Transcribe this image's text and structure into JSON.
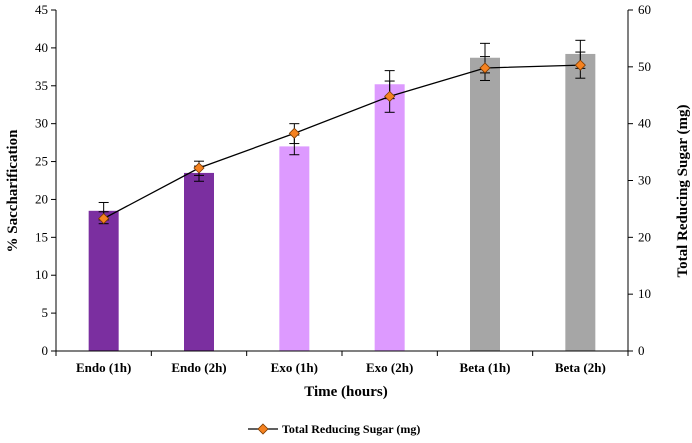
{
  "chart_data": {
    "type": "bar",
    "categories": [
      "Endo (1h)",
      "Endo (2h)",
      "Exo (1h)",
      "Exo (2h)",
      "Beta  (1h)",
      "Beta (2h)"
    ],
    "series": [
      {
        "name": "% Saccharification",
        "axis": "left",
        "values": [
          18.5,
          23.5,
          27.0,
          35.2,
          38.7,
          39.2
        ],
        "error_high": [
          19.6,
          24.4,
          28.5,
          37.0,
          40.6,
          41.0
        ],
        "error_low": [
          17.3,
          22.4,
          25.9,
          33.3,
          36.7,
          37.3
        ],
        "colors": [
          "#7b2fa0",
          "#7b2fa0",
          "#dd9aff",
          "#dd9aff",
          "#a6a6a6",
          "#a6a6a6"
        ]
      },
      {
        "name": "Total Reducing Sugar (mg)",
        "axis": "right",
        "type": "line",
        "values": [
          23.3,
          32.2,
          38.3,
          44.8,
          49.8,
          50.3
        ],
        "error_high": [
          24.5,
          33.4,
          40.0,
          47.5,
          51.8,
          52.6
        ],
        "error_low": [
          22.4,
          30.9,
          36.5,
          42.0,
          47.6,
          48.0
        ],
        "color": "#f58220"
      }
    ],
    "title": "",
    "xlabel": "Time (hours)",
    "ylabel": "% Saccharification",
    "ylabel_right": "Total Reducing Sugar (mg)",
    "ylim": [
      0,
      45
    ],
    "ylim_right": [
      0,
      60
    ],
    "yticks": [
      "0",
      "5",
      "10",
      "15",
      "20",
      "25",
      "30",
      "35",
      "40",
      "45"
    ],
    "yticks_right": [
      "0",
      "10",
      "20",
      "30",
      "40",
      "50",
      "60"
    ],
    "legend": {
      "entry": "Total Reducing Sugar (mg)",
      "position": "bottom"
    },
    "grid": false
  }
}
